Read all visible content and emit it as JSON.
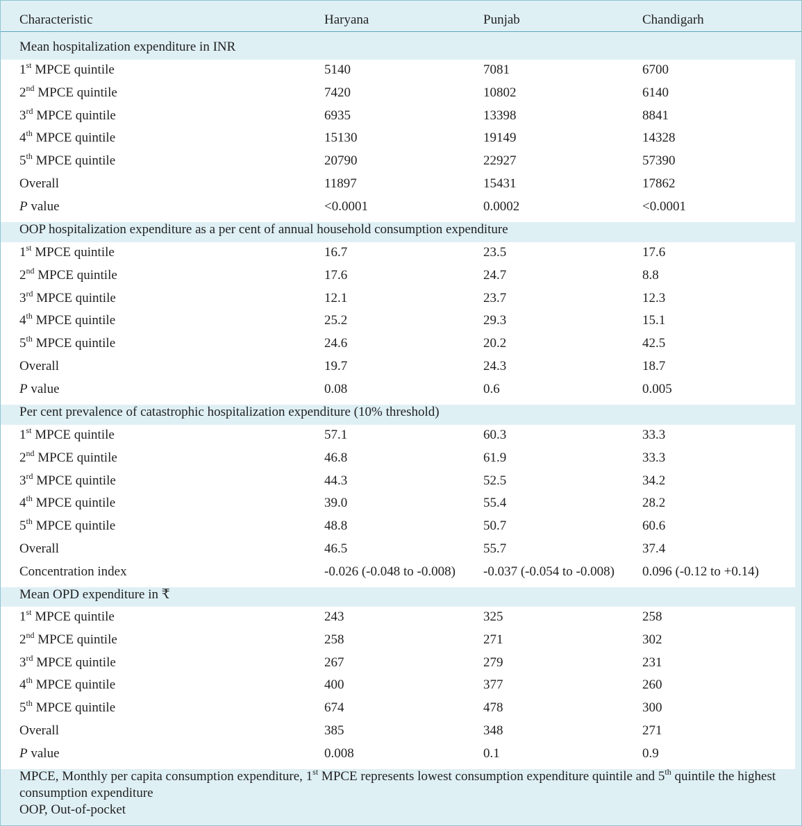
{
  "header": {
    "characteristic": "Characteristic",
    "col1": "Haryana",
    "col2": "Punjab",
    "col3": "Chandigarh"
  },
  "sections": [
    {
      "title": "Mean hospitalization expenditure in INR",
      "rows": [
        {
          "num": "1",
          "sup": "st",
          "rest": " MPCE quintile",
          "v": [
            "5140",
            "7081",
            "6700"
          ]
        },
        {
          "num": "2",
          "sup": "nd",
          "rest": " MPCE quintile",
          "v": [
            "7420",
            "10802",
            "6140"
          ]
        },
        {
          "num": "3",
          "sup": "rd",
          "rest": " MPCE quintile",
          "v": [
            "6935",
            "13398",
            "8841"
          ]
        },
        {
          "num": "4",
          "sup": "th",
          "rest": " MPCE quintile",
          "v": [
            "15130",
            "19149",
            "14328"
          ]
        },
        {
          "num": "5",
          "sup": "th",
          "rest": " MPCE quintile",
          "v": [
            "20790",
            "22927",
            "57390"
          ]
        },
        {
          "label": "Overall",
          "v": [
            "11897",
            "15431",
            "17862"
          ]
        },
        {
          "p": "P",
          "rest": " value",
          "v": [
            "<0.0001",
            "0.0002",
            "<0.0001"
          ]
        }
      ]
    },
    {
      "title": "OOP hospitalization expenditure as a per cent of annual household consumption expenditure",
      "rows": [
        {
          "num": "1",
          "sup": "st",
          "rest": " MPCE quintile",
          "v": [
            "16.7",
            "23.5",
            "17.6"
          ]
        },
        {
          "num": "2",
          "sup": "nd",
          "rest": " MPCE quintile",
          "v": [
            "17.6",
            "24.7",
            "8.8"
          ]
        },
        {
          "num": "3",
          "sup": "rd",
          "rest": " MPCE quintile",
          "v": [
            "12.1",
            "23.7",
            "12.3"
          ]
        },
        {
          "num": "4",
          "sup": "th",
          "rest": " MPCE quintile",
          "v": [
            "25.2",
            "29.3",
            "15.1"
          ]
        },
        {
          "num": "5",
          "sup": "th",
          "rest": " MPCE quintile",
          "v": [
            "24.6",
            "20.2",
            "42.5"
          ]
        },
        {
          "label": "Overall",
          "v": [
            "19.7",
            "24.3",
            "18.7"
          ]
        },
        {
          "p": "P",
          "rest": " value",
          "v": [
            "0.08",
            "0.6",
            "0.005"
          ]
        }
      ]
    },
    {
      "title": "Per cent prevalence of catastrophic hospitalization expenditure (10% threshold)",
      "rows": [
        {
          "num": "1",
          "sup": "st",
          "rest": " MPCE quintile",
          "v": [
            "57.1",
            "60.3",
            "33.3"
          ]
        },
        {
          "num": "2",
          "sup": "nd",
          "rest": " MPCE quintile",
          "v": [
            "46.8",
            "61.9",
            "33.3"
          ]
        },
        {
          "num": "3",
          "sup": "rd",
          "rest": " MPCE quintile",
          "v": [
            "44.3",
            "52.5",
            "34.2"
          ]
        },
        {
          "num": "4",
          "sup": "th",
          "rest": " MPCE quintile",
          "v": [
            "39.0",
            "55.4",
            "28.2"
          ]
        },
        {
          "num": "5",
          "sup": "th",
          "rest": " MPCE quintile",
          "v": [
            "48.8",
            "50.7",
            "60.6"
          ]
        },
        {
          "label": "Overall",
          "v": [
            "46.5",
            "55.7",
            "37.4"
          ]
        },
        {
          "label": "Concentration index",
          "v": [
            "-0.026 (-0.048 to -0.008)",
            "-0.037 (-0.054 to -0.008)",
            "0.096 (-0.12 to +0.14)"
          ]
        }
      ]
    },
    {
      "title": "Mean OPD expenditure in ₹",
      "rows": [
        {
          "num": "1",
          "sup": "st",
          "rest": " MPCE quintile",
          "v": [
            "243",
            "325",
            "258"
          ]
        },
        {
          "num": "2",
          "sup": "nd",
          "rest": " MPCE quintile",
          "v": [
            "258",
            "271",
            "302"
          ]
        },
        {
          "num": "3",
          "sup": "rd",
          "rest": " MPCE quintile",
          "v": [
            "267",
            "279",
            "231"
          ]
        },
        {
          "num": "4",
          "sup": "th",
          "rest": " MPCE quintile",
          "v": [
            "400",
            "377",
            "260"
          ]
        },
        {
          "num": "5",
          "sup": "th",
          "rest": " MPCE quintile",
          "v": [
            "674",
            "478",
            "300"
          ]
        },
        {
          "label": "Overall",
          "v": [
            "385",
            "348",
            "271"
          ]
        },
        {
          "p": "P",
          "rest": " value",
          "v": [
            "0.008",
            "0.1",
            "0.9"
          ]
        }
      ]
    }
  ],
  "footnote": {
    "line1_a": "MPCE, Monthly per capita consumption expenditure, 1",
    "line1_sup1": "st",
    "line1_b": " MPCE represents lowest consumption expenditure quintile and 5",
    "line1_sup2": "th",
    "line1_c": " quintile the highest consumption expenditure",
    "line2": "OOP, Out-of-pocket"
  }
}
